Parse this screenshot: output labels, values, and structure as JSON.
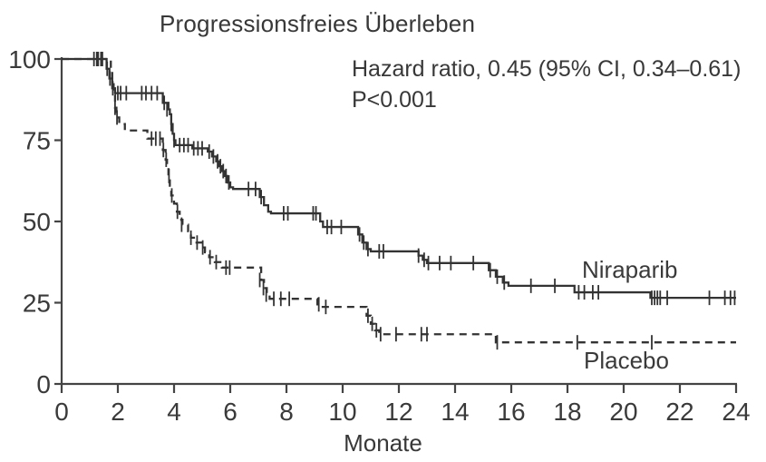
{
  "figure": {
    "title": "Progressionsfreies Überleben",
    "annotation": {
      "line1": "Hazard ratio, 0.45 (95% CI, 0.34–0.61)",
      "line2": "P<0.001"
    }
  },
  "colors": {
    "text": "#383838",
    "axis": "#444444",
    "curve": "#333333",
    "background": "#ffffff"
  },
  "chart_data": {
    "type": "line",
    "subtype": "kaplan-meier-step",
    "title": "Progressionsfreies Überleben",
    "xlabel": "Monate",
    "ylabel": "",
    "xlim": [
      0,
      24
    ],
    "ylim": [
      0,
      100
    ],
    "xticks": [
      0,
      2,
      4,
      6,
      8,
      10,
      12,
      14,
      16,
      18,
      20,
      22,
      24
    ],
    "yticks": [
      0,
      25,
      50,
      75,
      100
    ],
    "grid": false,
    "legend_position": "inline-right",
    "annotations": [
      "Hazard ratio, 0.45 (95% CI, 0.34–0.61)",
      "P<0.001"
    ],
    "series": [
      {
        "name": "Niraparib",
        "line_style": "solid",
        "color": "#333333",
        "steps": [
          [
            0,
            100
          ],
          [
            1.55,
            100
          ],
          [
            1.6,
            97
          ],
          [
            1.7,
            94
          ],
          [
            1.8,
            91
          ],
          [
            1.9,
            89.5
          ],
          [
            3.55,
            89.5
          ],
          [
            3.6,
            86.5
          ],
          [
            3.8,
            84.5
          ],
          [
            3.85,
            83
          ],
          [
            3.9,
            80
          ],
          [
            3.95,
            77
          ],
          [
            4.0,
            75
          ],
          [
            4.05,
            73.5
          ],
          [
            4.6,
            73.5
          ],
          [
            4.65,
            72.5
          ],
          [
            5.1,
            72.5
          ],
          [
            5.2,
            71.5
          ],
          [
            5.35,
            70
          ],
          [
            5.5,
            68.5
          ],
          [
            5.6,
            67
          ],
          [
            5.7,
            65.5
          ],
          [
            5.8,
            64
          ],
          [
            5.9,
            62
          ],
          [
            6.0,
            60.5
          ],
          [
            6.1,
            60
          ],
          [
            6.95,
            60
          ],
          [
            7.05,
            57.5
          ],
          [
            7.2,
            55
          ],
          [
            7.35,
            53
          ],
          [
            7.45,
            52.5
          ],
          [
            9.1,
            52.5
          ],
          [
            9.2,
            50
          ],
          [
            9.3,
            48.3
          ],
          [
            10.5,
            48.3
          ],
          [
            10.55,
            46
          ],
          [
            10.7,
            43.5
          ],
          [
            10.85,
            41.5
          ],
          [
            11.0,
            40.8
          ],
          [
            12.6,
            40.8
          ],
          [
            12.7,
            39.5
          ],
          [
            12.85,
            38.2
          ],
          [
            13.0,
            37.2
          ],
          [
            15.05,
            37.2
          ],
          [
            15.2,
            35
          ],
          [
            15.45,
            33
          ],
          [
            15.7,
            31.2
          ],
          [
            15.9,
            30.2
          ],
          [
            18.15,
            30.2
          ],
          [
            18.25,
            28.2
          ],
          [
            20.85,
            28.2
          ],
          [
            20.95,
            26.5
          ],
          [
            24,
            26.5
          ]
        ],
        "censor_marks": [
          [
            1.15,
            100
          ],
          [
            1.3,
            100
          ],
          [
            1.45,
            100
          ],
          [
            1.62,
            97
          ],
          [
            1.72,
            94
          ],
          [
            1.82,
            91
          ],
          [
            2.0,
            89.5
          ],
          [
            2.1,
            89.5
          ],
          [
            2.3,
            89.5
          ],
          [
            2.85,
            89.5
          ],
          [
            3.0,
            89.5
          ],
          [
            3.2,
            89.5
          ],
          [
            3.4,
            89.5
          ],
          [
            3.65,
            86.5
          ],
          [
            3.75,
            84.5
          ],
          [
            3.9,
            80
          ],
          [
            4.0,
            75
          ],
          [
            4.2,
            73.5
          ],
          [
            4.35,
            73.5
          ],
          [
            4.5,
            73.5
          ],
          [
            4.7,
            72.5
          ],
          [
            4.85,
            72.5
          ],
          [
            5.0,
            72.5
          ],
          [
            5.25,
            71.5
          ],
          [
            5.4,
            70
          ],
          [
            5.55,
            68.5
          ],
          [
            5.65,
            67
          ],
          [
            5.75,
            65.5
          ],
          [
            5.85,
            64
          ],
          [
            5.95,
            62
          ],
          [
            6.65,
            60
          ],
          [
            6.9,
            60
          ],
          [
            7.1,
            57.5
          ],
          [
            7.9,
            52.5
          ],
          [
            8.05,
            52.5
          ],
          [
            8.95,
            52.5
          ],
          [
            9.05,
            52.5
          ],
          [
            9.45,
            48.3
          ],
          [
            9.6,
            48.3
          ],
          [
            9.95,
            48.3
          ],
          [
            10.6,
            46
          ],
          [
            10.75,
            43.5
          ],
          [
            10.9,
            41.5
          ],
          [
            11.3,
            40.8
          ],
          [
            11.45,
            40.8
          ],
          [
            12.7,
            39.5
          ],
          [
            12.9,
            38.2
          ],
          [
            13.05,
            37.2
          ],
          [
            13.45,
            37.2
          ],
          [
            13.85,
            37.2
          ],
          [
            14.65,
            37.2
          ],
          [
            15.25,
            35
          ],
          [
            15.5,
            33
          ],
          [
            15.75,
            31.2
          ],
          [
            16.7,
            30.2
          ],
          [
            17.55,
            30.2
          ],
          [
            18.4,
            28.2
          ],
          [
            18.6,
            28.2
          ],
          [
            18.9,
            28.2
          ],
          [
            19.1,
            28.2
          ],
          [
            21.0,
            26.5
          ],
          [
            21.1,
            26.5
          ],
          [
            21.2,
            26.5
          ],
          [
            21.3,
            26.5
          ],
          [
            21.55,
            26.5
          ],
          [
            23.05,
            26.5
          ],
          [
            23.6,
            26.5
          ],
          [
            23.8,
            26.5
          ],
          [
            23.95,
            26.5
          ]
        ]
      },
      {
        "name": "Placebo",
        "line_style": "dashed",
        "color": "#333333",
        "steps": [
          [
            0,
            100
          ],
          [
            1.7,
            100
          ],
          [
            1.75,
            97
          ],
          [
            1.8,
            93
          ],
          [
            1.85,
            89
          ],
          [
            1.9,
            85
          ],
          [
            1.95,
            82
          ],
          [
            2.05,
            80
          ],
          [
            2.25,
            78
          ],
          [
            2.95,
            78
          ],
          [
            3.05,
            75.5
          ],
          [
            3.55,
            75.5
          ],
          [
            3.6,
            72
          ],
          [
            3.7,
            69
          ],
          [
            3.75,
            66.5
          ],
          [
            3.8,
            64
          ],
          [
            3.85,
            61
          ],
          [
            3.9,
            58
          ],
          [
            4.0,
            55.5
          ],
          [
            4.1,
            53
          ],
          [
            4.2,
            50.5
          ],
          [
            4.3,
            49
          ],
          [
            4.5,
            47
          ],
          [
            4.6,
            45
          ],
          [
            4.8,
            43.5
          ],
          [
            5.0,
            42
          ],
          [
            5.1,
            40.5
          ],
          [
            5.25,
            39
          ],
          [
            5.45,
            37.5
          ],
          [
            5.7,
            35.8
          ],
          [
            7.0,
            35.8
          ],
          [
            7.1,
            32
          ],
          [
            7.2,
            29.5
          ],
          [
            7.3,
            27.5
          ],
          [
            7.4,
            26.2
          ],
          [
            9.0,
            26.2
          ],
          [
            9.1,
            24.5
          ],
          [
            9.2,
            23.7
          ],
          [
            10.75,
            23.7
          ],
          [
            10.85,
            21
          ],
          [
            11.0,
            18.5
          ],
          [
            11.15,
            16.5
          ],
          [
            11.3,
            15.3
          ],
          [
            15.35,
            15.3
          ],
          [
            15.45,
            12.8
          ],
          [
            24,
            12.8
          ]
        ],
        "censor_marks": [
          [
            1.25,
            100
          ],
          [
            1.4,
            100
          ],
          [
            1.9,
            85
          ],
          [
            1.97,
            82
          ],
          [
            3.2,
            75.5
          ],
          [
            3.35,
            75.5
          ],
          [
            3.5,
            75.5
          ],
          [
            3.62,
            72
          ],
          [
            3.72,
            69
          ],
          [
            3.82,
            64
          ],
          [
            3.92,
            58
          ],
          [
            4.12,
            53
          ],
          [
            4.27,
            49
          ],
          [
            4.6,
            45
          ],
          [
            4.82,
            43.5
          ],
          [
            5.02,
            42
          ],
          [
            5.28,
            39
          ],
          [
            5.5,
            37.5
          ],
          [
            5.85,
            35.8
          ],
          [
            5.98,
            35.8
          ],
          [
            7.05,
            32
          ],
          [
            7.18,
            29.5
          ],
          [
            7.28,
            27.5
          ],
          [
            7.55,
            26.2
          ],
          [
            7.8,
            26.2
          ],
          [
            8.1,
            26.2
          ],
          [
            9.15,
            24.5
          ],
          [
            9.4,
            23.7
          ],
          [
            10.9,
            21
          ],
          [
            11.05,
            18.5
          ],
          [
            11.2,
            16.5
          ],
          [
            11.35,
            15.3
          ],
          [
            11.9,
            15.3
          ],
          [
            12.8,
            15.3
          ],
          [
            13.0,
            15.3
          ],
          [
            15.5,
            12.8
          ],
          [
            18.35,
            12.8
          ],
          [
            21.0,
            12.8
          ]
        ]
      }
    ]
  }
}
